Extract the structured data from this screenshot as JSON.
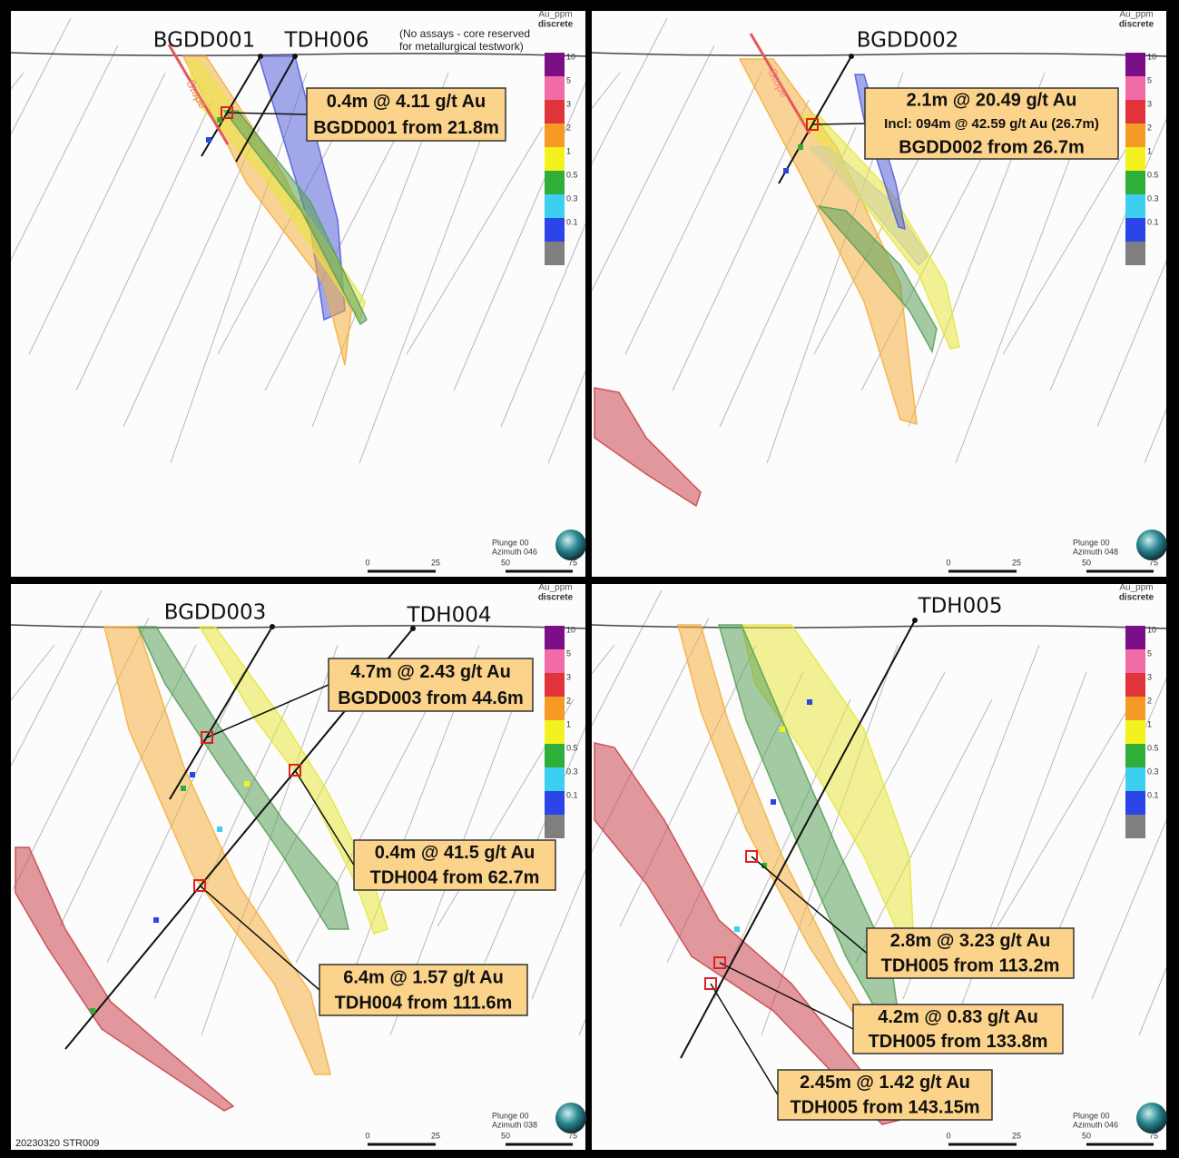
{
  "footer": "20230320 STR009",
  "legend": {
    "title": "Au_ppm",
    "subtitle": "discrete",
    "classes": [
      {
        "label": "10",
        "color": "#7a0f86"
      },
      {
        "label": "5",
        "color": "#f26aa8"
      },
      {
        "label": "3",
        "color": "#e0343a"
      },
      {
        "label": "2",
        "color": "#f49a25"
      },
      {
        "label": "1",
        "color": "#f4f21e"
      },
      {
        "label": "0.5",
        "color": "#2fae3a"
      },
      {
        "label": "0.3",
        "color": "#3dcff0"
      },
      {
        "label": "0.1",
        "color": "#2b45e8"
      },
      {
        "label": null,
        "color": "#7f7f7f"
      }
    ]
  },
  "scale_labels": [
    "0",
    "25",
    "50",
    "75"
  ],
  "panels": [
    {
      "holes": [
        "BGDD001",
        "TDH006"
      ],
      "note": [
        "(No assays - core reserved",
        "for metallurgical testwork)"
      ],
      "stope": "Stope",
      "callouts": [
        {
          "lines": [
            "0.4m @ 4.11 g/t Au",
            "BGDD001 from 21.8m"
          ]
        }
      ],
      "plunge": "Plunge 00",
      "azimuth": "Azimuth 046"
    },
    {
      "holes": [
        "BGDD002"
      ],
      "stope": "Stope",
      "callouts": [
        {
          "lines": [
            "2.1m @ 20.49 g/t Au",
            "Incl: 094m @ 42.59 g/t Au (26.7m)",
            "BGDD002 from 26.7m"
          ]
        }
      ],
      "plunge": "Plunge 00",
      "azimuth": "Azimuth 048"
    },
    {
      "holes": [
        "BGDD003",
        "TDH004"
      ],
      "callouts": [
        {
          "lines": [
            "4.7m @ 2.43 g/t Au",
            "BGDD003 from 44.6m"
          ]
        },
        {
          "lines": [
            "0.4m @ 41.5 g/t Au",
            "TDH004 from 62.7m"
          ]
        },
        {
          "lines": [
            "6.4m @ 1.57 g/t Au",
            "TDH004 from 111.6m"
          ]
        }
      ],
      "plunge": "Plunge 00",
      "azimuth": "Azimuth 038"
    },
    {
      "holes": [
        "TDH005"
      ],
      "callouts": [
        {
          "lines": [
            "2.8m @ 3.23 g/t Au",
            "TDH005 from 113.2m"
          ]
        },
        {
          "lines": [
            "4.2m @ 0.83 g/t Au",
            "TDH005 from 133.8m"
          ]
        },
        {
          "lines": [
            "2.45m @ 1.42 g/t Au",
            "TDH005 from 143.15m"
          ]
        }
      ],
      "plunge": "Plunge 00",
      "azimuth": "Azimuth 046"
    }
  ]
}
